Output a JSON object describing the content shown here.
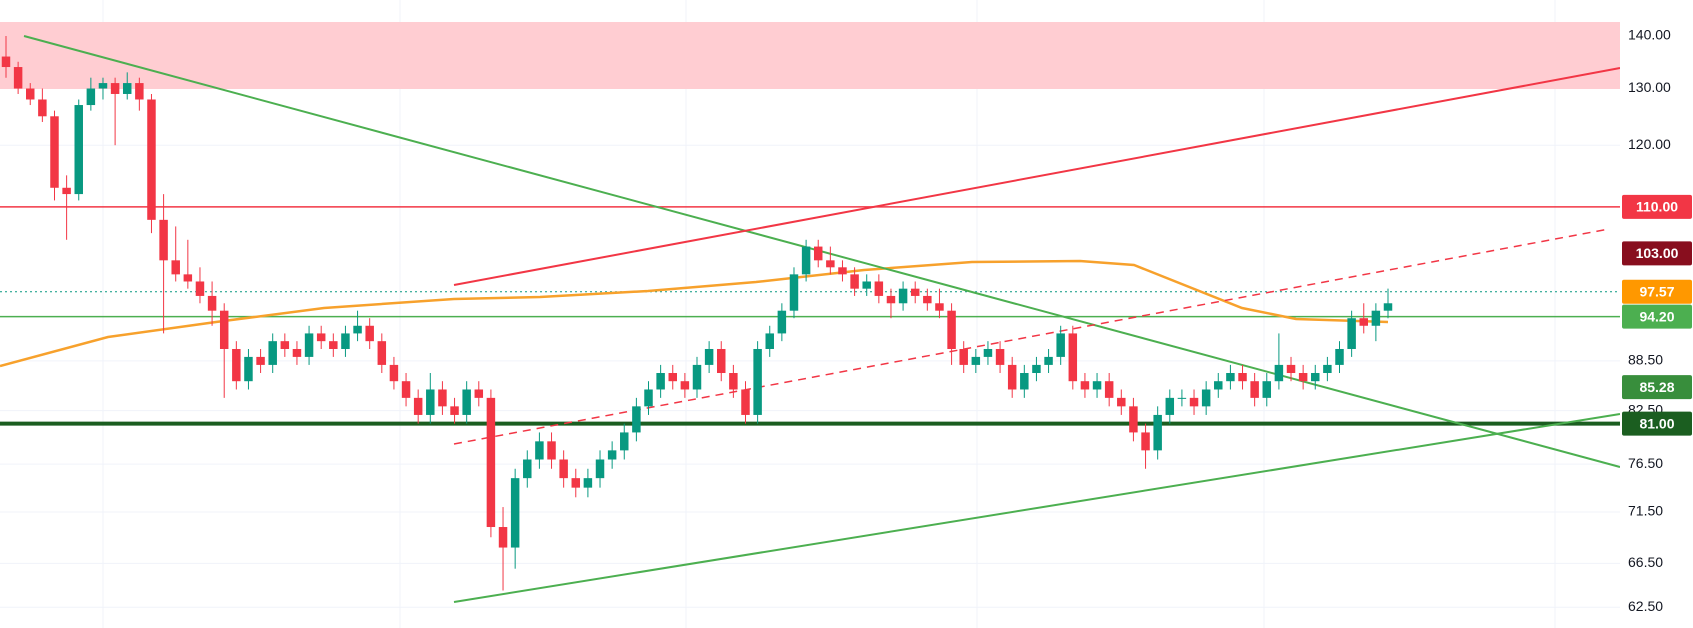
{
  "chart_data": {
    "type": "candlestick",
    "log": true,
    "grid": true,
    "ylim": [
      60.7,
      147.3
    ],
    "yticks": [
      {
        "value": 140,
        "label": "140.00"
      },
      {
        "value": 130,
        "label": "130.00"
      },
      {
        "value": 120,
        "label": "120.00"
      },
      {
        "value": 88.5,
        "label": "88.50"
      },
      {
        "value": 82.5,
        "label": "82.50"
      },
      {
        "value": 76.5,
        "label": "76.50"
      },
      {
        "value": 71.5,
        "label": "71.50"
      },
      {
        "value": 66.5,
        "label": "66.50"
      },
      {
        "value": 62.5,
        "label": "62.50"
      }
    ],
    "up_color": "#089981",
    "down_color": "#f23645",
    "levels": [
      {
        "value": 110,
        "label": "110.00",
        "color": "#f23645"
      },
      {
        "value": 103,
        "label": "103.00",
        "color": "#880e1e"
      },
      {
        "value": 97.57,
        "label": "97.57",
        "color": "#ff9800"
      },
      {
        "value": 94.2,
        "label": "94.20",
        "color": "#4caf50"
      },
      {
        "value": 85.28,
        "label": "85.28",
        "color": "#388e3c"
      },
      {
        "value": 81,
        "label": "81.00",
        "color": "#1b5e20"
      }
    ],
    "candles": [
      [
        136,
        140,
        132,
        134
      ],
      [
        134,
        135,
        129,
        130
      ],
      [
        130,
        131,
        127,
        128
      ],
      [
        128,
        130,
        124,
        125
      ],
      [
        125,
        126,
        111,
        113
      ],
      [
        113,
        115,
        105,
        112
      ],
      [
        112,
        128,
        111,
        127
      ],
      [
        127,
        132,
        126,
        130
      ],
      [
        130,
        132,
        128,
        131
      ],
      [
        131,
        132,
        120,
        129
      ],
      [
        129,
        133,
        128,
        131
      ],
      [
        131,
        132,
        126,
        128
      ],
      [
        128,
        129,
        106,
        108
      ],
      [
        108,
        112,
        92,
        102
      ],
      [
        102,
        107,
        99,
        100
      ],
      [
        100,
        105,
        98,
        99
      ],
      [
        99,
        101,
        96,
        97
      ],
      [
        97,
        99,
        93,
        95
      ],
      [
        95,
        96,
        84,
        90
      ],
      [
        90,
        91,
        85,
        86
      ],
      [
        86,
        90,
        85,
        89
      ],
      [
        89,
        90,
        87,
        88
      ],
      [
        88,
        92,
        87,
        91
      ],
      [
        91,
        92,
        89,
        90
      ],
      [
        90,
        91,
        88,
        89
      ],
      [
        89,
        93,
        88,
        92
      ],
      [
        92,
        93,
        90,
        91
      ],
      [
        91,
        92,
        89,
        90
      ],
      [
        90,
        93,
        89,
        92
      ],
      [
        92,
        95,
        91,
        93
      ],
      [
        93,
        94,
        90,
        91
      ],
      [
        91,
        92,
        87,
        88
      ],
      [
        88,
        89,
        85,
        86
      ],
      [
        86,
        87,
        83,
        84
      ],
      [
        84,
        85,
        81,
        82
      ],
      [
        82,
        87,
        81,
        85
      ],
      [
        85,
        86,
        82,
        83
      ],
      [
        83,
        84,
        81,
        82
      ],
      [
        82,
        86,
        81,
        85
      ],
      [
        85,
        86,
        83,
        84
      ],
      [
        84,
        85,
        69,
        70
      ],
      [
        70,
        72,
        64,
        68
      ],
      [
        68,
        76,
        66,
        75
      ],
      [
        75,
        78,
        74,
        77
      ],
      [
        77,
        80,
        76,
        79
      ],
      [
        79,
        80,
        76,
        77
      ],
      [
        77,
        78,
        74,
        75
      ],
      [
        75,
        76,
        73,
        74
      ],
      [
        74,
        76,
        73,
        75
      ],
      [
        75,
        78,
        74,
        77
      ],
      [
        77,
        79,
        76,
        78
      ],
      [
        78,
        81,
        77,
        80
      ],
      [
        80,
        84,
        79,
        83
      ],
      [
        83,
        86,
        82,
        85
      ],
      [
        85,
        88,
        84,
        87
      ],
      [
        87,
        88,
        85,
        86
      ],
      [
        86,
        87,
        84,
        85
      ],
      [
        85,
        89,
        84,
        88
      ],
      [
        88,
        91,
        87,
        90
      ],
      [
        90,
        91,
        86,
        87
      ],
      [
        87,
        88,
        84,
        85
      ],
      [
        85,
        86,
        81,
        82
      ],
      [
        82,
        91,
        81,
        90
      ],
      [
        90,
        93,
        89,
        92
      ],
      [
        92,
        96,
        91,
        95
      ],
      [
        95,
        101,
        94,
        100
      ],
      [
        100,
        105,
        99,
        104
      ],
      [
        104,
        105,
        101,
        102
      ],
      [
        102,
        104,
        100,
        101
      ],
      [
        101,
        102,
        99,
        100
      ],
      [
        100,
        101,
        97,
        98
      ],
      [
        98,
        100,
        97,
        99
      ],
      [
        99,
        100,
        96,
        97
      ],
      [
        97,
        98,
        94,
        96
      ],
      [
        96,
        99,
        95,
        98
      ],
      [
        98,
        99,
        96,
        97
      ],
      [
        97,
        98,
        95,
        96
      ],
      [
        96,
        98,
        94,
        95
      ],
      [
        95,
        96,
        88,
        90
      ],
      [
        90,
        91,
        87,
        88
      ],
      [
        88,
        90,
        87,
        89
      ],
      [
        89,
        91,
        88,
        90
      ],
      [
        90,
        91,
        87,
        88
      ],
      [
        88,
        89,
        84,
        85
      ],
      [
        85,
        88,
        84,
        87
      ],
      [
        87,
        89,
        86,
        88
      ],
      [
        88,
        90,
        87,
        89
      ],
      [
        89,
        93,
        88,
        92
      ],
      [
        92,
        93,
        85,
        86
      ],
      [
        86,
        87,
        84,
        85
      ],
      [
        85,
        87,
        84,
        86
      ],
      [
        86,
        87,
        83,
        84
      ],
      [
        84,
        85,
        82,
        83
      ],
      [
        83,
        84,
        79,
        80
      ],
      [
        80,
        81,
        76,
        78
      ],
      [
        78,
        83,
        77,
        82
      ],
      [
        82,
        85,
        81,
        84
      ],
      [
        84,
        85,
        83,
        84
      ],
      [
        84,
        85,
        82,
        83
      ],
      [
        83,
        86,
        82,
        85
      ],
      [
        85,
        87,
        84,
        86
      ],
      [
        86,
        88,
        85,
        87
      ],
      [
        87,
        88,
        85,
        86
      ],
      [
        86,
        87,
        83,
        84
      ],
      [
        84,
        87,
        83,
        86
      ],
      [
        86,
        92,
        85,
        88
      ],
      [
        88,
        89,
        86,
        87
      ],
      [
        87,
        88,
        85,
        86
      ],
      [
        86,
        88,
        85,
        87
      ],
      [
        87,
        89,
        86,
        88
      ],
      [
        88,
        91,
        87,
        90
      ],
      [
        90,
        95,
        89,
        94
      ],
      [
        94,
        96,
        92,
        93
      ],
      [
        93,
        96,
        91,
        95
      ],
      [
        95,
        98,
        94,
        96
      ]
    ]
  }
}
